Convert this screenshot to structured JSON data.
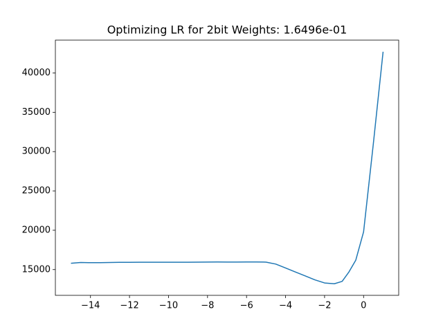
{
  "chart_data": {
    "type": "line",
    "title": "Optimizing LR for 2bit Weights: 1.6496e-01",
    "x": [
      -15,
      -14.5,
      -14,
      -13.5,
      -13,
      -12.5,
      -12,
      -11.5,
      -11,
      -10.5,
      -10,
      -9.5,
      -9,
      -8.5,
      -8,
      -7.5,
      -7,
      -6.5,
      -6,
      -5.5,
      -5,
      -4.5,
      -4,
      -3.5,
      -3,
      -2.5,
      -2,
      -1.5,
      -1.1,
      -0.75,
      -0.4,
      0,
      0.5,
      1
    ],
    "series": [
      {
        "color": "#1f77b4",
        "values": [
          15800,
          15900,
          15880,
          15880,
          15900,
          15920,
          15920,
          15930,
          15940,
          15940,
          15930,
          15930,
          15940,
          15950,
          15960,
          15970,
          15960,
          15960,
          15970,
          15970,
          15950,
          15700,
          15200,
          14700,
          14200,
          13700,
          13300,
          13200,
          13500,
          14700,
          16200,
          19800,
          31000,
          42700
        ]
      }
    ],
    "xlim": [
      -15.8,
      1.8
    ],
    "ylim": [
      11725,
      44175
    ],
    "xticks": [
      {
        "value": -14,
        "label": "−14"
      },
      {
        "value": -12,
        "label": "−12"
      },
      {
        "value": -10,
        "label": "−10"
      },
      {
        "value": -8,
        "label": "−8"
      },
      {
        "value": -6,
        "label": "−6"
      },
      {
        "value": -4,
        "label": "−4"
      },
      {
        "value": -2,
        "label": "−2"
      },
      0
    ],
    "yticks": [
      15000,
      20000,
      25000,
      30000,
      35000,
      40000
    ]
  }
}
